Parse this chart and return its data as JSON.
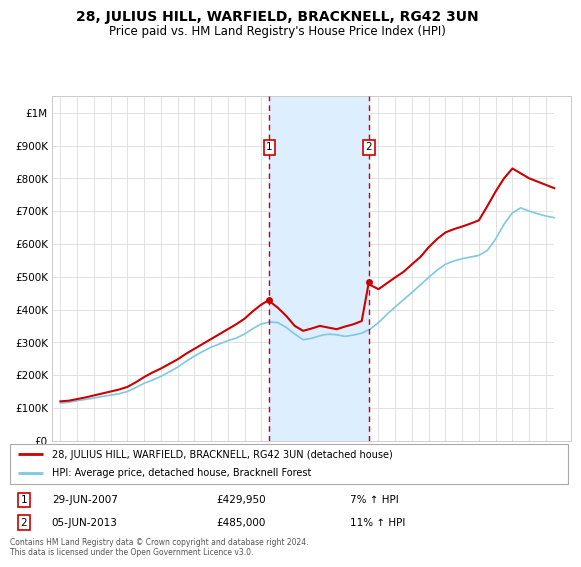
{
  "title": "28, JULIUS HILL, WARFIELD, BRACKNELL, RG42 3UN",
  "subtitle": "Price paid vs. HM Land Registry's House Price Index (HPI)",
  "yticks": [
    0,
    100000,
    200000,
    300000,
    400000,
    500000,
    600000,
    700000,
    800000,
    900000,
    1000000
  ],
  "ytick_labels": [
    "£0",
    "£100K",
    "£200K",
    "£300K",
    "£400K",
    "£500K",
    "£600K",
    "£700K",
    "£800K",
    "£900K",
    "£1M"
  ],
  "xmin": 1994.5,
  "xmax": 2025.5,
  "ymin": 0,
  "ymax": 1050000,
  "transaction1_x": 2007.49,
  "transaction1_y": 429950,
  "transaction1_label": "1",
  "transaction1_date": "29-JUN-2007",
  "transaction1_price": "£429,950",
  "transaction1_hpi": "7% ↑ HPI",
  "transaction2_x": 2013.43,
  "transaction2_y": 485000,
  "transaction2_label": "2",
  "transaction2_date": "05-JUN-2013",
  "transaction2_price": "£485,000",
  "transaction2_hpi": "11% ↑ HPI",
  "price_color": "#cc0000",
  "hpi_line_color": "#7ec8e3",
  "shade_color": "#ddeeff",
  "transaction_box_color": "#cc0000",
  "footer": "Contains HM Land Registry data © Crown copyright and database right 2024.\nThis data is licensed under the Open Government Licence v3.0.",
  "legend_line1": "28, JULIUS HILL, WARFIELD, BRACKNELL, RG42 3UN (detached house)",
  "legend_line2": "HPI: Average price, detached house, Bracknell Forest",
  "hpi_years": [
    1995,
    1995.5,
    1996,
    1996.5,
    1997,
    1997.5,
    1998,
    1998.5,
    1999,
    1999.5,
    2000,
    2000.5,
    2001,
    2001.5,
    2002,
    2002.5,
    2003,
    2003.5,
    2004,
    2004.5,
    2005,
    2005.5,
    2006,
    2006.5,
    2007,
    2007.5,
    2008,
    2008.5,
    2009,
    2009.5,
    2010,
    2010.5,
    2011,
    2011.5,
    2012,
    2012.5,
    2013,
    2013.5,
    2014,
    2014.5,
    2015,
    2015.5,
    2016,
    2016.5,
    2017,
    2017.5,
    2018,
    2018.5,
    2019,
    2019.5,
    2020,
    2020.5,
    2021,
    2021.5,
    2022,
    2022.5,
    2023,
    2023.5,
    2024,
    2024.5
  ],
  "hpi_values": [
    115000,
    117000,
    122000,
    126000,
    130000,
    135000,
    139000,
    143000,
    150000,
    162000,
    175000,
    185000,
    196000,
    210000,
    224000,
    242000,
    258000,
    272000,
    285000,
    295000,
    305000,
    313000,
    325000,
    342000,
    356000,
    362000,
    360000,
    345000,
    325000,
    308000,
    312000,
    320000,
    325000,
    323000,
    318000,
    322000,
    328000,
    340000,
    360000,
    385000,
    408000,
    430000,
    452000,
    475000,
    498000,
    520000,
    538000,
    548000,
    555000,
    560000,
    565000,
    580000,
    615000,
    660000,
    695000,
    710000,
    700000,
    692000,
    685000,
    680000
  ],
  "price_years": [
    1995,
    1995.5,
    1996,
    1996.5,
    1997,
    1997.5,
    1998,
    1998.5,
    1999,
    1999.5,
    2000,
    2000.5,
    2001,
    2001.5,
    2002,
    2002.5,
    2003,
    2003.5,
    2004,
    2004.5,
    2005,
    2005.5,
    2006,
    2006.5,
    2007,
    2007.49,
    2007.5,
    2008,
    2008.5,
    2009,
    2009.5,
    2010,
    2010.5,
    2011,
    2011.5,
    2012,
    2012.5,
    2013,
    2013.43,
    2013.5,
    2014,
    2014.5,
    2015,
    2015.5,
    2016,
    2016.5,
    2017,
    2017.5,
    2018,
    2018.5,
    2019,
    2019.5,
    2020,
    2020.5,
    2021,
    2021.5,
    2022,
    2022.5,
    2023,
    2023.5,
    2024,
    2024.5
  ],
  "price_values": [
    120000,
    122000,
    127000,
    132000,
    138000,
    144000,
    150000,
    156000,
    164000,
    178000,
    194000,
    208000,
    220000,
    234000,
    248000,
    265000,
    280000,
    295000,
    310000,
    325000,
    340000,
    355000,
    372000,
    395000,
    415000,
    429950,
    425000,
    405000,
    380000,
    350000,
    335000,
    342000,
    350000,
    345000,
    340000,
    348000,
    355000,
    365000,
    485000,
    475000,
    462000,
    480000,
    498000,
    515000,
    538000,
    560000,
    590000,
    615000,
    635000,
    645000,
    653000,
    662000,
    672000,
    715000,
    760000,
    800000,
    830000,
    815000,
    800000,
    790000,
    780000,
    770000
  ]
}
